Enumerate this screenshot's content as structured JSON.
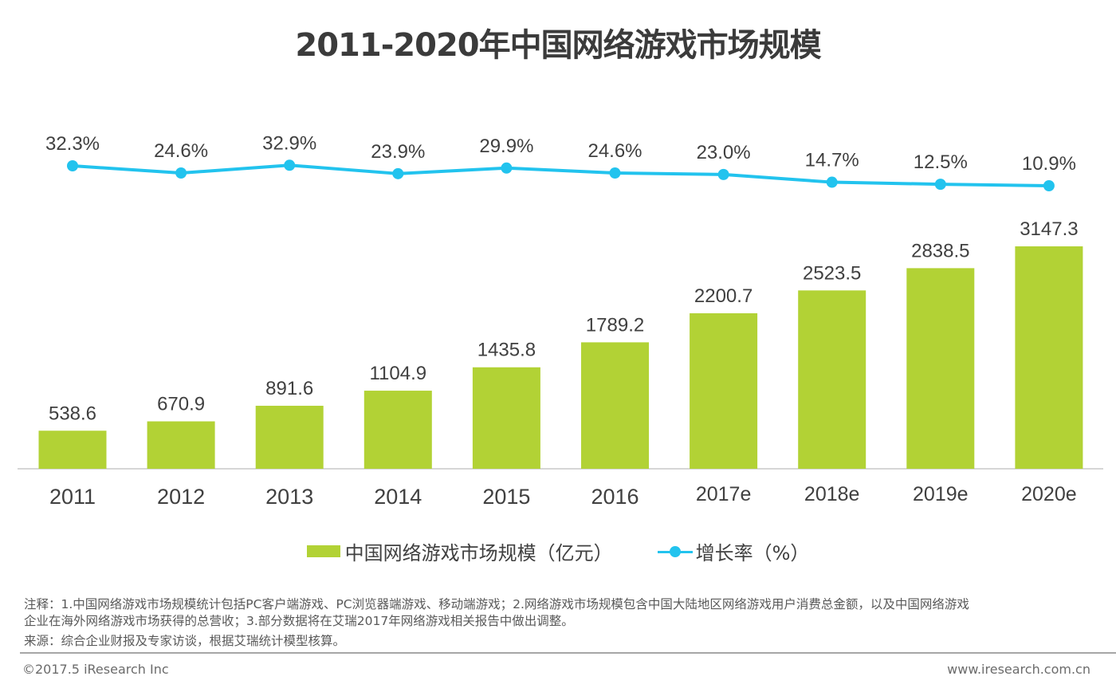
{
  "chart_data": {
    "type": "bar",
    "title": "2011-2020年中国网络游戏市场规模",
    "categories": [
      "2011",
      "2012",
      "2013",
      "2014",
      "2015",
      "2016",
      "2017e",
      "2018e",
      "2019e",
      "2020e"
    ],
    "series": [
      {
        "name": "中国网络游戏市场规模（亿元）",
        "type": "bar",
        "color": "#b2d235",
        "values": [
          538.6,
          670.9,
          891.6,
          1104.9,
          1435.8,
          1789.2,
          2200.7,
          2523.5,
          2838.5,
          3147.3
        ],
        "labels": [
          "538.6",
          "670.9",
          "891.6",
          "1104.9",
          "1435.8",
          "1789.2",
          "2200.7",
          "2523.5",
          "2838.5",
          "3147.3"
        ]
      },
      {
        "name": "增长率（%）",
        "type": "line",
        "color": "#22c3ee",
        "values": [
          32.3,
          24.6,
          32.9,
          23.9,
          29.9,
          24.6,
          23.0,
          14.7,
          12.5,
          10.9
        ],
        "labels": [
          "32.3%",
          "24.6%",
          "32.9%",
          "23.9%",
          "29.9%",
          "24.6%",
          "23.0%",
          "14.7%",
          "12.5%",
          "10.9%"
        ]
      }
    ],
    "xlabel": "",
    "ylabel": "",
    "grid": false,
    "legend_position": "bottom-center"
  },
  "legend": {
    "bar_label": "中国网络游戏市场规模（亿元）",
    "line_label": "增长率（%）"
  },
  "notes": {
    "line1": "注释：1.中国网络游戏市场规模统计包括PC客户端游戏、PC浏览器端游戏、移动端游戏；2.网络游戏市场规模包含中国大陆地区网络游戏用户消费总金额，以及中国网络游戏",
    "line2": "企业在海外网络游戏市场获得的总营收；3.部分数据将在艾瑞2017年网络游戏相关报告中做出调整。",
    "source": "来源：综合企业财报及专家访谈，根据艾瑞统计模型核算。"
  },
  "footer": {
    "copyright": "©2017.5 iResearch Inc",
    "website": "www.iresearch.com.cn"
  }
}
